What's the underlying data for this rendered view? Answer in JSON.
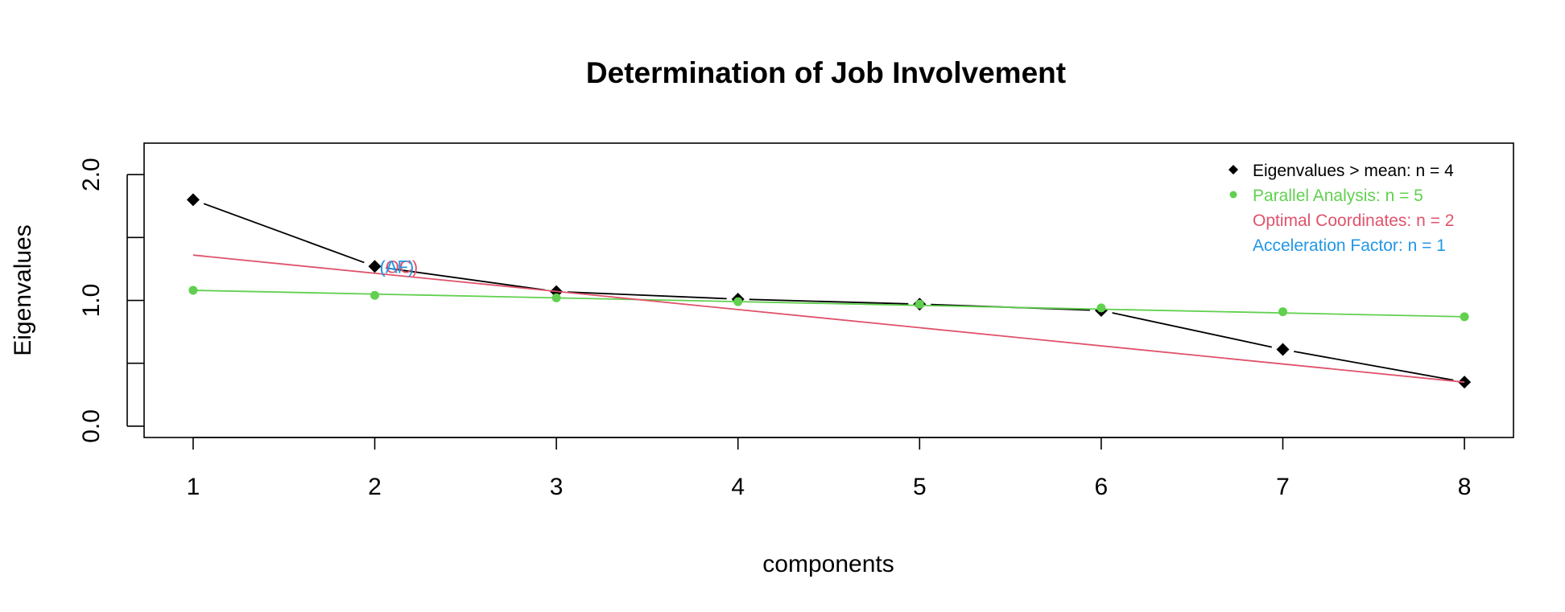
{
  "chart_data": {
    "type": "line",
    "title": "Determination of Job Involvement",
    "xlabel": "components",
    "ylabel": "Eigenvalues",
    "x": [
      1,
      2,
      3,
      4,
      5,
      6,
      7,
      8
    ],
    "xlim": [
      0.73,
      8.27
    ],
    "ylim": [
      -0.09,
      2.25
    ],
    "x_ticks": [
      "1",
      "2",
      "3",
      "4",
      "5",
      "6",
      "7",
      "8"
    ],
    "y_ticks": [
      0.0,
      0.5,
      1.0,
      1.5,
      2.0
    ],
    "y_tick_labels": [
      "0.0",
      "",
      "1.0",
      "",
      "2.0"
    ],
    "grid": false,
    "legend_position": "top-right",
    "series": [
      {
        "key": "eigen",
        "marker": "diamond",
        "line": "segments",
        "color": "#000000",
        "values": [
          1.8,
          1.27,
          1.07,
          1.01,
          0.97,
          0.92,
          0.61,
          0.35
        ]
      },
      {
        "key": "parallel",
        "marker": "circle",
        "line": "regression",
        "color": "#61D04F",
        "values": [
          1.08,
          1.04,
          1.02,
          0.99,
          0.97,
          0.94,
          0.91,
          0.87
        ]
      },
      {
        "key": "optimal",
        "marker": "none",
        "line": "straight",
        "color": "#DF536B",
        "values": [
          1.36,
          1.22,
          1.08,
          0.93,
          0.79,
          0.64,
          0.5,
          0.35
        ]
      }
    ],
    "legend": [
      {
        "marker": "diamond",
        "color": "#000000",
        "label": "Eigenvalues > mean: n =  4"
      },
      {
        "marker": "circle",
        "color": "#61D04F",
        "label": "Parallel Analysis: n =  5"
      },
      {
        "marker": "none",
        "color": "#DF536B",
        "label": "Optimal Coordinates: n =  2"
      },
      {
        "marker": "none",
        "color": "#2297E6",
        "label": "Acceleration Factor: n =  1"
      }
    ],
    "annotations": [
      {
        "text": "(OC)",
        "x": 2,
        "y": 1.27,
        "color": "#DF536B"
      },
      {
        "text": "(AF)",
        "x": 2,
        "y": 1.27,
        "color": "#2297E6"
      }
    ]
  }
}
